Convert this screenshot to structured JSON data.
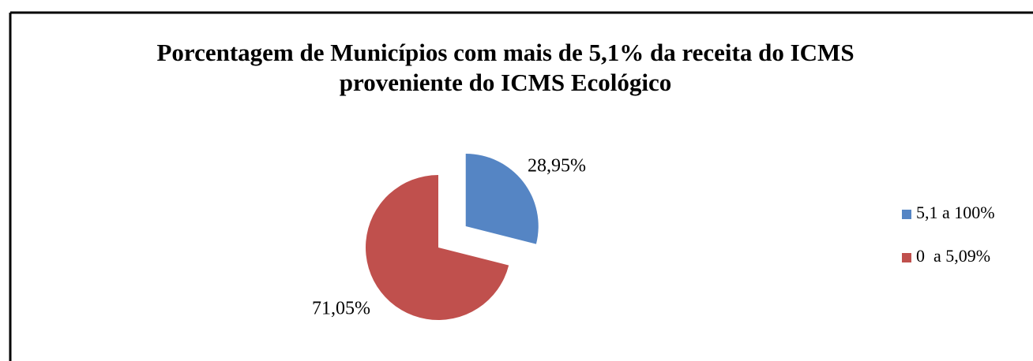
{
  "chart_data": {
    "type": "pie",
    "title": [
      "Porcentagem de Municípios com mais de 5,1%  da receita do ICMS",
      "proveniente do ICMS Ecológico"
    ],
    "categories": [
      "5,1 a 100%",
      "0  a 5,09%"
    ],
    "values": [
      28.95,
      71.05
    ],
    "value_labels": [
      "28,95%",
      "71,05%"
    ],
    "colors": [
      "#5585c4",
      "#c0504d"
    ],
    "exploded": [
      true,
      false
    ],
    "legend": "right"
  }
}
